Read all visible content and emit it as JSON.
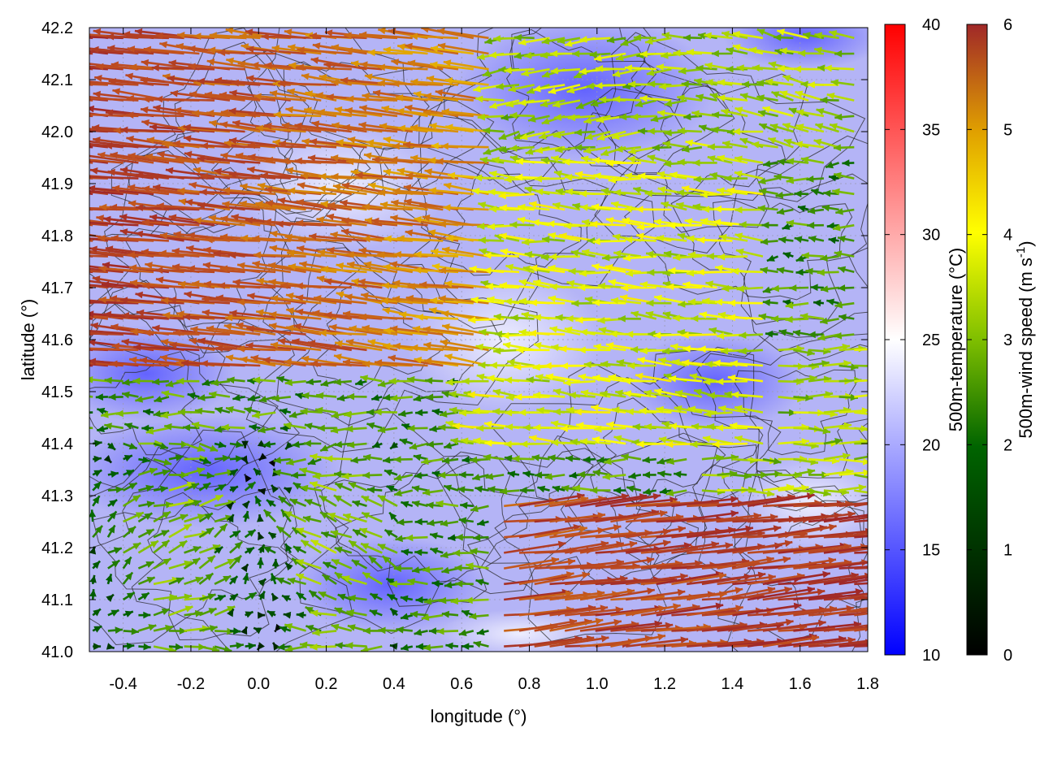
{
  "chart_data": {
    "type": "vector-field",
    "xlabel": "longitude (°)",
    "ylabel": "latitude (°)",
    "xlim": [
      -0.5,
      1.8
    ],
    "ylim": [
      41.0,
      42.2
    ],
    "xticks": [
      "-0.4",
      "-0.2",
      "0.0",
      "0.2",
      "0.4",
      "0.6",
      "0.8",
      "1.0",
      "1.2",
      "1.4",
      "1.6",
      "1.8"
    ],
    "xtick_values": [
      -0.4,
      -0.2,
      0.0,
      0.2,
      0.4,
      0.6,
      0.8,
      1.0,
      1.2,
      1.4,
      1.6,
      1.8
    ],
    "yticks": [
      "41.0",
      "41.1",
      "41.2",
      "41.3",
      "41.4",
      "41.5",
      "41.6",
      "41.7",
      "41.8",
      "41.9",
      "42.0",
      "42.1",
      "42.2"
    ],
    "ytick_values": [
      41.0,
      41.1,
      41.2,
      41.3,
      41.4,
      41.5,
      41.6,
      41.7,
      41.8,
      41.9,
      42.0,
      42.1,
      42.2
    ],
    "grid": true,
    "background_field": {
      "description": "500m-temperature shaded map, mostly 16-22 °C",
      "typical_range": [
        15,
        23
      ]
    },
    "contours": "terrain height contour lines (black)",
    "vectors": {
      "description": "500m wind vectors colored by speed",
      "regions": [
        {
          "area": "north-west (lon -0.5–0.6, lat 41.6–42.2)",
          "direction": "west",
          "speed": 5.8
        },
        {
          "area": "south-east (lon 0.8–1.8, lat 41.0–41.3)",
          "direction": "east",
          "speed": 5.5
        },
        {
          "area": "central (lon 0.6–1.4, lat 41.4–41.9)",
          "direction": "west",
          "speed": 2.5
        },
        {
          "area": "south-west (lon -0.5–0.4, lat 41.0–41.4)",
          "direction": "variable",
          "speed": 2.0
        }
      ]
    },
    "colorbars": [
      {
        "label": "500m-temperature (°C)",
        "range": [
          10,
          40
        ],
        "ticks": [
          "10",
          "15",
          "20",
          "25",
          "30",
          "35",
          "40"
        ],
        "tick_values": [
          10,
          15,
          20,
          25,
          30,
          35,
          40
        ],
        "colors": [
          "#0000ff",
          "#ffffff",
          "#ff0000"
        ]
      },
      {
        "label": "500m-wind speed (m s-1)",
        "label_main": "500m-wind speed (m s",
        "label_sup": "-1",
        "label_end": ")",
        "range": [
          0,
          6
        ],
        "ticks": [
          "0",
          "1",
          "2",
          "3",
          "4",
          "5",
          "6"
        ],
        "tick_values": [
          0,
          1,
          2,
          3,
          4,
          5,
          6
        ],
        "colors": [
          "#000000",
          "#006400",
          "#7fbf00",
          "#ffff00",
          "#e0a000",
          "#c05020",
          "#a02828"
        ]
      }
    ]
  }
}
